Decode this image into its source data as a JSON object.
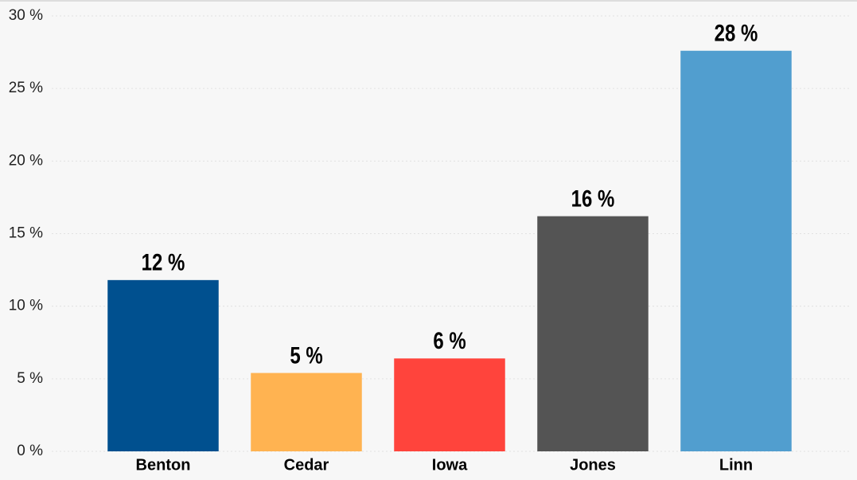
{
  "chart_data": {
    "type": "bar",
    "categories": [
      "Benton",
      "Cedar",
      "Iowa",
      "Jones",
      "Linn"
    ],
    "values": [
      11.8,
      5.4,
      6.4,
      16.2,
      27.6
    ],
    "value_labels": [
      "12 %",
      "5 %",
      "6 %",
      "16 %",
      "28 %"
    ],
    "colors": [
      "#00508f",
      "#ffb351",
      "#ff443c",
      "#545454",
      "#519ecf"
    ],
    "ylim": [
      0,
      30
    ],
    "yticks": [
      {
        "value": 0,
        "label": "0 %"
      },
      {
        "value": 5,
        "label": "5 %"
      },
      {
        "value": 10,
        "label": "10 %"
      },
      {
        "value": 15,
        "label": "15 %"
      },
      {
        "value": 20,
        "label": "20 %"
      },
      {
        "value": 25,
        "label": "25 %"
      },
      {
        "value": 30,
        "label": "30 %"
      }
    ],
    "grid": true
  }
}
